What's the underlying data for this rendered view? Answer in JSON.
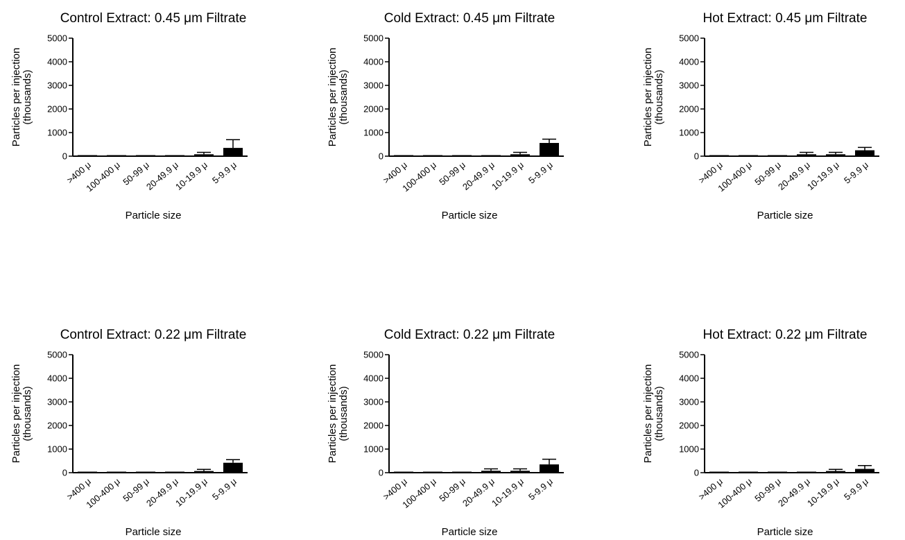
{
  "chart_data": [
    {
      "type": "bar",
      "title": "Control Extract: 0.45 μm Filtrate",
      "ylabel": "Particles per injection\n(thousands)",
      "xlabel": "Particle size",
      "categories": [
        ">400 μ",
        "100-400 μ",
        "50-99 μ",
        "20-49.9 μ",
        "10-19.9 μ",
        "5-9.9 μ"
      ],
      "values": [
        0,
        0,
        5,
        0,
        80,
        350
      ],
      "error": [
        0,
        0,
        5,
        0,
        80,
        350
      ],
      "ylim": [
        0,
        5000
      ],
      "yticks": [
        0,
        1000,
        2000,
        3000,
        4000,
        5000
      ]
    },
    {
      "type": "bar",
      "title": "Cold Extract: 0.45 μm Filtrate",
      "ylabel": "Particles per injection\n(thousands)",
      "xlabel": "Particle size",
      "categories": [
        ">400 μ",
        "100-400 μ",
        "50-99 μ",
        "20-49.9 μ",
        "10-19.9 μ",
        "5-9.9 μ"
      ],
      "values": [
        0,
        0,
        0,
        0,
        80,
        560
      ],
      "error": [
        0,
        0,
        0,
        0,
        80,
        160
      ],
      "ylim": [
        0,
        5000
      ],
      "yticks": [
        0,
        1000,
        2000,
        3000,
        4000,
        5000
      ]
    },
    {
      "type": "bar",
      "title": "Hot Extract: 0.45 μm Filtrate",
      "ylabel": "Particles per injection\n(thousands)",
      "xlabel": "Particle size",
      "categories": [
        ">400 μ",
        "100-400 μ",
        "50-99 μ",
        "20-49.9 μ",
        "10-19.9 μ",
        "5-9.9 μ"
      ],
      "values": [
        0,
        0,
        5,
        80,
        80,
        250
      ],
      "error": [
        0,
        0,
        5,
        80,
        80,
        120
      ],
      "ylim": [
        0,
        5000
      ],
      "yticks": [
        0,
        1000,
        2000,
        3000,
        4000,
        5000
      ]
    },
    {
      "type": "bar",
      "title": "Control Extract: 0.22 μm Filtrate",
      "ylabel": "Particles per injection\n(thousands)",
      "xlabel": "Particle size",
      "categories": [
        ">400 μ",
        "100-400 μ",
        "50-99 μ",
        "20-49.9 μ",
        "10-19.9 μ",
        "5-9.9 μ"
      ],
      "values": [
        0,
        0,
        5,
        0,
        70,
        420
      ],
      "error": [
        0,
        0,
        5,
        0,
        70,
        130
      ],
      "ylim": [
        0,
        5000
      ],
      "yticks": [
        0,
        1000,
        2000,
        3000,
        4000,
        5000
      ]
    },
    {
      "type": "bar",
      "title": "Cold Extract: 0.22 μm Filtrate",
      "ylabel": "Particles per injection\n(thousands)",
      "xlabel": "Particle size",
      "categories": [
        ">400 μ",
        "100-400 μ",
        "50-99 μ",
        "20-49.9 μ",
        "10-19.9 μ",
        "5-9.9 μ"
      ],
      "values": [
        0,
        0,
        0,
        80,
        80,
        350
      ],
      "error": [
        0,
        0,
        0,
        80,
        80,
        220
      ],
      "ylim": [
        0,
        5000
      ],
      "yticks": [
        0,
        1000,
        2000,
        3000,
        4000,
        5000
      ]
    },
    {
      "type": "bar",
      "title": "Hot Extract: 0.22 μm Filtrate",
      "ylabel": "Particles per injection\n(thousands)",
      "xlabel": "Particle size",
      "categories": [
        ">400 μ",
        "100-400 μ",
        "50-99 μ",
        "20-49.9 μ",
        "10-19.9 μ",
        "5-9.9 μ"
      ],
      "values": [
        0,
        0,
        0,
        0,
        70,
        160
      ],
      "error": [
        0,
        0,
        0,
        0,
        70,
        140
      ],
      "ylim": [
        0,
        5000
      ],
      "yticks": [
        0,
        1000,
        2000,
        3000,
        4000,
        5000
      ]
    }
  ]
}
